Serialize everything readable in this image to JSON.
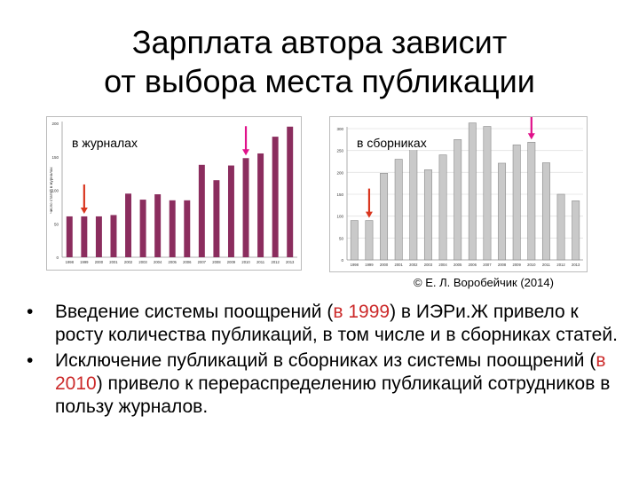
{
  "title_line1": "Зарплата автора зависит",
  "title_line2": "от выбора места публикации",
  "credit": "© Е. Л. Воробейчик (2014)",
  "colors": {
    "left_bars": "#8b2d5e",
    "right_bars": "#c9c9c9",
    "right_bar_border": "#8a8a8a",
    "arrow_red": "#d9361f",
    "arrow_magenta": "#e0118a",
    "highlight": "#cc2a2a"
  },
  "bullets": [
    {
      "bullet": "•",
      "parts": [
        "Введение системы поощрений (",
        "в 1999",
        ") в ИЭРи.Ж привело к росту количества публикаций, в том числе и в сборниках статей."
      ]
    },
    {
      "bullet": "•",
      "parts": [
        "Исключение публикаций в сборниках из системы поощрений (",
        "в 2010",
        ") привело к перераспределению публикаций сотрудников в пользу журналов."
      ]
    }
  ],
  "chart_data": [
    {
      "type": "bar",
      "label": "в журналах",
      "ylabel": "число статей в журналах",
      "ylim": [
        0,
        200
      ],
      "yticks": [
        0,
        50,
        100,
        150,
        200
      ],
      "categories": [
        "1998",
        "1999",
        "2000",
        "2001",
        "2002",
        "2003",
        "2004",
        "2005",
        "2006",
        "2007",
        "2008",
        "2009",
        "2010",
        "2011",
        "2012",
        "2013"
      ],
      "values": [
        61,
        61,
        61,
        63,
        95,
        86,
        94,
        85,
        85,
        138,
        115,
        137,
        148,
        155,
        180,
        195
      ],
      "arrows": [
        {
          "category": "1999",
          "color": "red"
        },
        {
          "category": "2010",
          "color": "magenta"
        }
      ]
    },
    {
      "type": "bar",
      "label": "в сборниках",
      "ylim": [
        0,
        300
      ],
      "yticks": [
        0,
        50,
        100,
        150,
        200,
        250,
        300
      ],
      "categories": [
        "1998",
        "1999",
        "2000",
        "2001",
        "2002",
        "2003",
        "2004",
        "2005",
        "2006",
        "2007",
        "2008",
        "2009",
        "2010",
        "2011",
        "2012",
        "2013"
      ],
      "values": [
        90,
        90,
        198,
        230,
        254,
        206,
        240,
        275,
        313,
        305,
        221,
        263,
        269,
        222,
        150,
        135
      ],
      "arrows": [
        {
          "category": "1999",
          "color": "red"
        },
        {
          "category": "2010",
          "color": "magenta"
        }
      ]
    }
  ]
}
